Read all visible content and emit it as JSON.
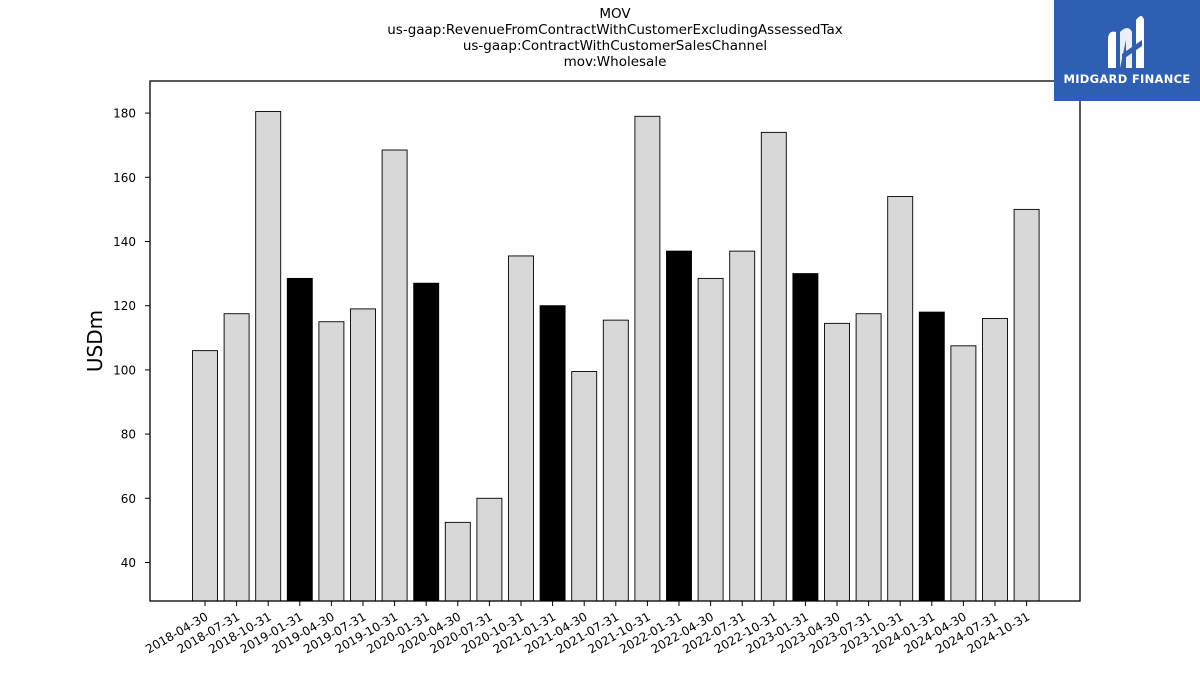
{
  "chart_data": {
    "type": "bar",
    "title_lines": [
      "MOV",
      "us-gaap:RevenueFromContractWithCustomerExcludingAssessedTax",
      "us-gaap:ContractWithCustomerSalesChannel",
      "mov:Wholesale"
    ],
    "xlabel": "",
    "ylabel": "USDm",
    "ylim": [
      28,
      190
    ],
    "yticks": [
      40,
      60,
      80,
      100,
      120,
      140,
      160,
      180
    ],
    "categories": [
      "2018-04-30",
      "2018-07-31",
      "2018-10-31",
      "2019-01-31",
      "2019-04-30",
      "2019-07-31",
      "2019-10-31",
      "2020-01-31",
      "2020-04-30",
      "2020-07-31",
      "2020-10-31",
      "2021-01-31",
      "2021-04-30",
      "2021-07-31",
      "2021-10-31",
      "2022-01-31",
      "2022-04-30",
      "2022-07-31",
      "2022-10-31",
      "2023-01-31",
      "2023-04-30",
      "2023-07-31",
      "2023-10-31",
      "2024-01-31",
      "2024-04-30",
      "2024-07-31",
      "2024-10-31"
    ],
    "values": [
      106,
      117.5,
      180.5,
      128.5,
      115,
      119,
      168.5,
      127,
      52.5,
      60,
      135.5,
      120,
      99.5,
      115.5,
      179,
      137,
      128.5,
      137,
      174,
      130,
      114.5,
      117.5,
      154,
      118,
      107.5,
      116,
      150
    ],
    "bar_colors": [
      "#d8d8d8",
      "#d8d8d8",
      "#d8d8d8",
      "#000000",
      "#d8d8d8",
      "#d8d8d8",
      "#d8d8d8",
      "#000000",
      "#d8d8d8",
      "#d8d8d8",
      "#d8d8d8",
      "#000000",
      "#d8d8d8",
      "#d8d8d8",
      "#d8d8d8",
      "#000000",
      "#d8d8d8",
      "#d8d8d8",
      "#d8d8d8",
      "#000000",
      "#d8d8d8",
      "#d8d8d8",
      "#d8d8d8",
      "#000000",
      "#d8d8d8",
      "#d8d8d8",
      "#d8d8d8"
    ],
    "grid": false,
    "legend": "none"
  },
  "logo": {
    "text": "MIDGARD FINANCE",
    "background": "#2f5fb3",
    "icon": "midgard-logo-icon"
  }
}
